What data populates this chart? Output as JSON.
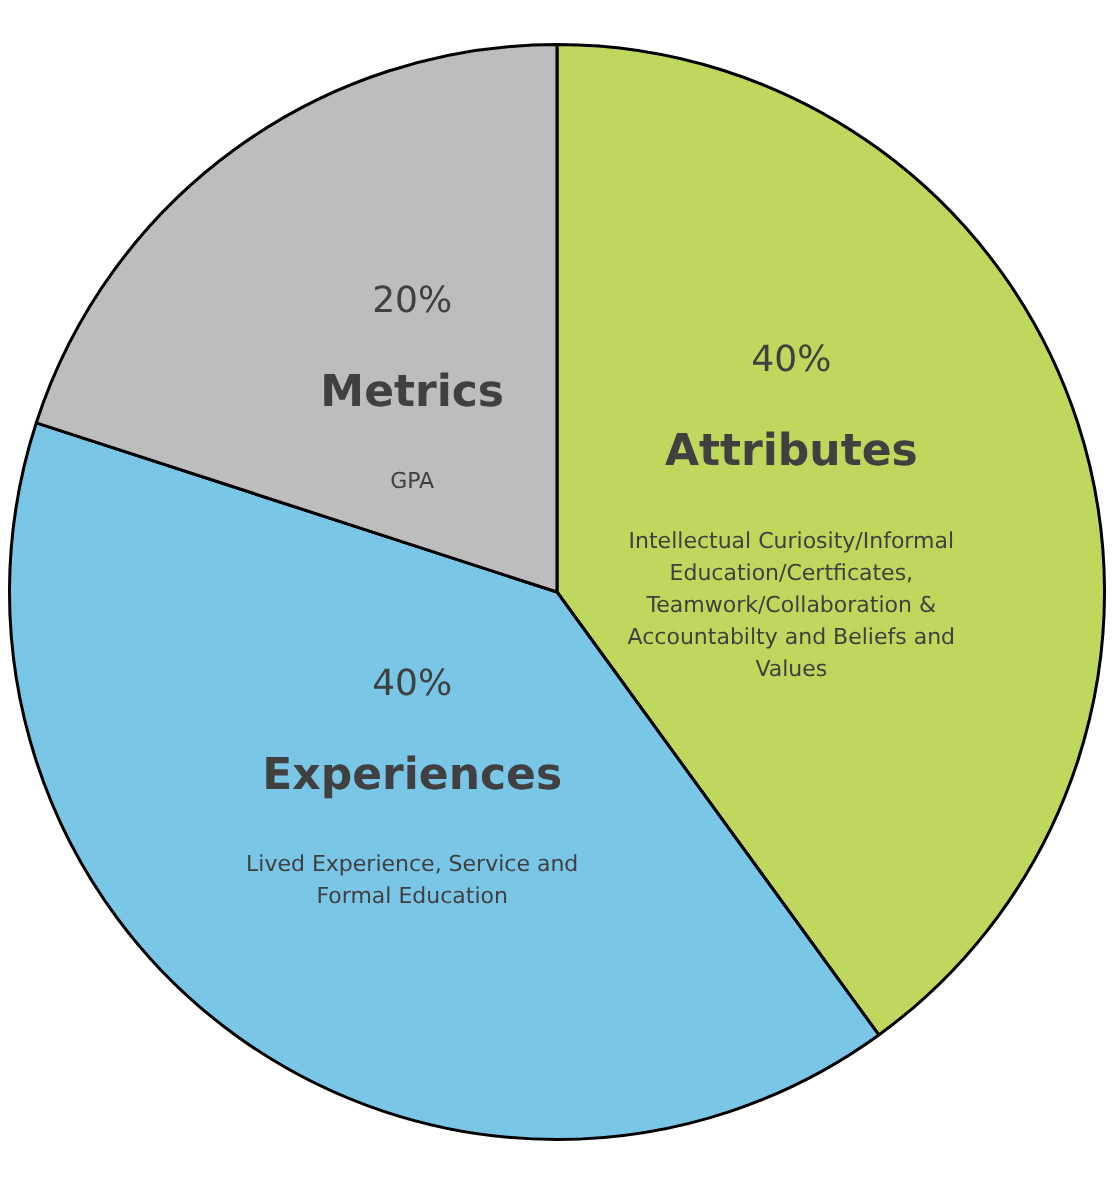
{
  "chart_data": {
    "type": "pie",
    "categories": [
      "Attributes",
      "Experiences",
      "Metrics"
    ],
    "values": [
      40,
      40,
      20
    ],
    "colors": [
      "#bdd85c",
      "#7ac6e6",
      "#bdbdbd"
    ],
    "value_labels": [
      "40%",
      "40%",
      "20%"
    ],
    "legend": false,
    "annotations": [
      "Intellectual Curiosity/Informal Education/Certficates, Teamwork/Collaboration & Accountabilty and Beliefs and Values",
      "Lived Experience, Service and Formal Education",
      "GPA"
    ]
  }
}
